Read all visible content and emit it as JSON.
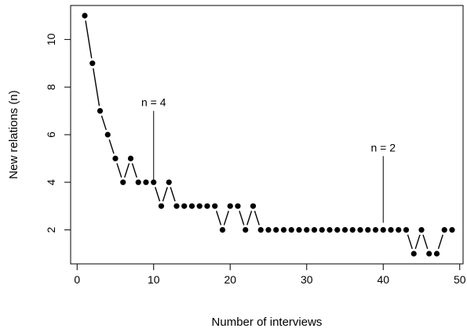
{
  "chart_data": {
    "type": "line",
    "style": "both-points-and-broken-lines",
    "xlabel": "Number of interviews",
    "ylabel": "New relations (n)",
    "xlim": [
      1,
      49
    ],
    "ylim": [
      1,
      11
    ],
    "x_ticks": [
      0,
      10,
      20,
      30,
      40,
      50
    ],
    "y_ticks": [
      2,
      4,
      6,
      8,
      10
    ],
    "grid": false,
    "x": [
      1,
      2,
      3,
      4,
      5,
      6,
      7,
      8,
      9,
      10,
      11,
      12,
      13,
      14,
      15,
      16,
      17,
      18,
      19,
      20,
      21,
      22,
      23,
      24,
      25,
      26,
      27,
      28,
      29,
      30,
      31,
      32,
      33,
      34,
      35,
      36,
      37,
      38,
      39,
      40,
      41,
      42,
      43,
      44,
      45,
      46,
      47,
      48,
      49
    ],
    "y": [
      11,
      9,
      7,
      6,
      5,
      4,
      5,
      4,
      4,
      4,
      3,
      4,
      3,
      3,
      3,
      3,
      3,
      3,
      2,
      3,
      3,
      2,
      3,
      2,
      2,
      2,
      2,
      2,
      2,
      2,
      2,
      2,
      2,
      2,
      2,
      2,
      2,
      2,
      2,
      2,
      2,
      2,
      2,
      1,
      2,
      1,
      1,
      2,
      2
    ],
    "annotations": [
      {
        "text": "n = 4",
        "x": 10,
        "y_from": 4,
        "y_to": 7
      },
      {
        "text": "n = 2",
        "x": 40,
        "y_from": 2.3,
        "y_to": 5.1
      }
    ],
    "colors": {
      "points": "#000000",
      "lines": "#000000"
    }
  }
}
